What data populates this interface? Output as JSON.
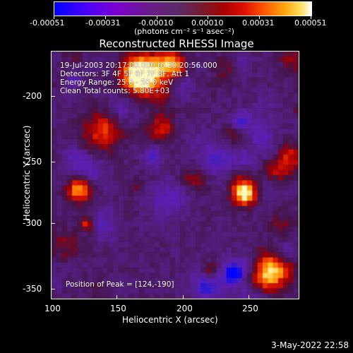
{
  "colorbar": {
    "tick_labels": [
      "-0.00051",
      "-0.00031",
      "-0.00010",
      "0.00010",
      "0.00031",
      "0.00051"
    ],
    "unit_text": "(photons cm⁻² s⁻¹ asec⁻²)"
  },
  "plot": {
    "title": "Reconstructed RHESSI Image",
    "annotations": {
      "time": "19-Jul-2003 20:17:00.000 to 20:20:56.000",
      "detectors": "Detectors: 3F 4F 5F 6F 7F 8F, Att 1",
      "energy": "Energy Range: 25.0 - 50.0 keV",
      "clean": "Clean    Total counts: 5.80E+03",
      "peak": "Position of Peak = [124,-190]"
    },
    "xlabel": "Heliocentric X (arcsec)",
    "ylabel": "Heliocentric Y (arcsec)",
    "x_ticks": [
      "100",
      "150",
      "200",
      "250"
    ],
    "y_ticks": [
      "-200",
      "-250",
      "-300",
      "-350"
    ]
  },
  "footer": {
    "timestamp": "3-May-2022 22:58"
  },
  "chart_data": {
    "type": "heatmap",
    "title": "Reconstructed RHESSI Image",
    "xlabel": "Heliocentric X (arcsec)",
    "ylabel": "Heliocentric Y (arcsec)",
    "xlim": [
      100,
      290
    ],
    "ylim": [
      -360,
      -170
    ],
    "x_ticks": [
      100,
      150,
      200,
      250
    ],
    "y_ticks": [
      -200,
      -250,
      -300,
      -350
    ],
    "colorbar_range": [
      -0.00051,
      0.00051
    ],
    "peak": [
      124,
      -190
    ]
  }
}
